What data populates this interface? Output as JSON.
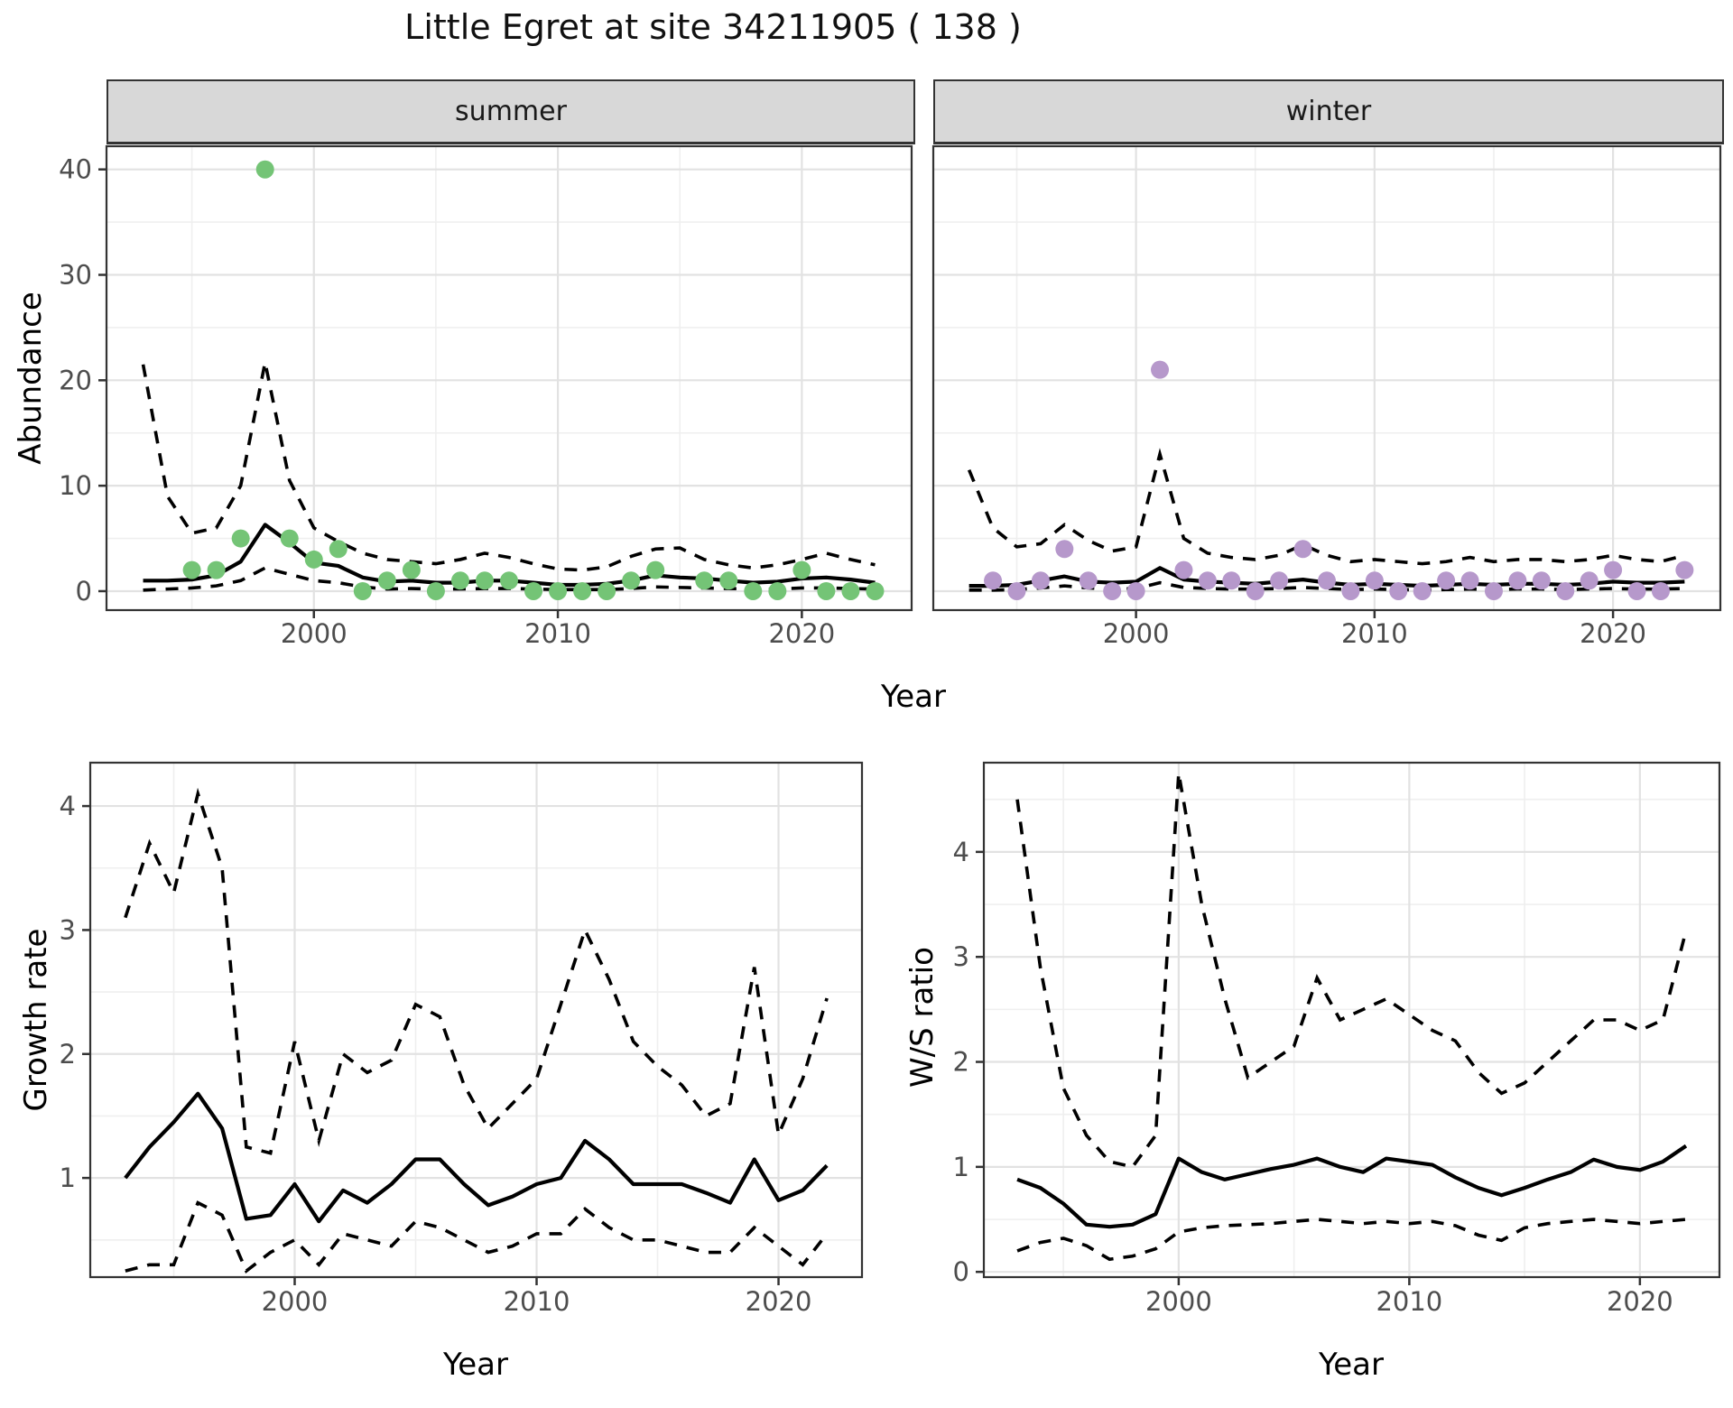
{
  "title": "Little Egret at site 34211905 ( 138 )",
  "labels": {
    "y_top": "Abundance",
    "x": "Year",
    "y_growth": "Growth rate",
    "y_ws": "W/S ratio"
  },
  "colors": {
    "summer_point": "#74C476",
    "winter_point": "#B698CB",
    "line": "#000000",
    "grid_major": "#E2E2E2",
    "grid_minor": "#EFEFEF",
    "panel_border": "#333333",
    "strip_bg": "#D8D8D8",
    "tick_text": "#4D4D4D"
  },
  "chart_data": [
    {
      "id": "abundance-summer",
      "type": "line",
      "facet": "summer",
      "xlabel": "Year",
      "ylabel": "Abundance",
      "legend": "none",
      "grid": "on",
      "years": [
        1993,
        1994,
        1995,
        1996,
        1997,
        1998,
        1999,
        2000,
        2001,
        2002,
        2003,
        2004,
        2005,
        2006,
        2007,
        2008,
        2009,
        2010,
        2011,
        2012,
        2013,
        2014,
        2015,
        2016,
        2017,
        2018,
        2019,
        2020,
        2021,
        2022,
        2023
      ],
      "obs": [
        null,
        null,
        2,
        2,
        5,
        40,
        5,
        3,
        4,
        0,
        1,
        2,
        0,
        1,
        1,
        1,
        0,
        0,
        0,
        0,
        1,
        2,
        null,
        1,
        1,
        0,
        0,
        2,
        0,
        0,
        0
      ],
      "fit": [
        1.0,
        1.0,
        1.1,
        1.5,
        2.8,
        6.3,
        4.6,
        2.7,
        2.4,
        1.3,
        0.9,
        1.0,
        0.8,
        0.8,
        1.0,
        1.0,
        0.8,
        0.6,
        0.6,
        0.7,
        1.0,
        1.5,
        1.3,
        1.2,
        1.0,
        0.8,
        0.9,
        1.2,
        1.3,
        1.1,
        0.8
      ],
      "hi": [
        21.5,
        9.0,
        5.5,
        6.0,
        10.0,
        21.7,
        10.5,
        6.0,
        4.7,
        3.6,
        3.0,
        2.8,
        2.6,
        3.0,
        3.6,
        3.2,
        2.6,
        2.1,
        2.0,
        2.3,
        3.3,
        4.0,
        4.1,
        3.0,
        2.5,
        2.2,
        2.5,
        3.0,
        3.6,
        3.0,
        2.5
      ],
      "lo": [
        0.1,
        0.2,
        0.3,
        0.5,
        1.0,
        2.2,
        1.6,
        1.0,
        0.8,
        0.4,
        0.2,
        0.25,
        0.2,
        0.2,
        0.25,
        0.25,
        0.2,
        0.15,
        0.15,
        0.15,
        0.25,
        0.4,
        0.35,
        0.3,
        0.25,
        0.2,
        0.2,
        0.3,
        0.3,
        0.25,
        0.2
      ],
      "x_ticks": [
        2000,
        2010,
        2020
      ],
      "x_minor": [
        1995,
        2005,
        2015
      ],
      "y_ticks": [
        0,
        10,
        20,
        30,
        40
      ],
      "y_minor": [
        5,
        15,
        25,
        35
      ],
      "xlim": [
        1991.5,
        2024.5
      ],
      "ylim": [
        -1.8,
        42.2
      ],
      "point_color_key": "summer_point"
    },
    {
      "id": "abundance-winter",
      "type": "line",
      "facet": "winter",
      "xlabel": "Year",
      "ylabel": "Abundance",
      "legend": "none",
      "grid": "on",
      "years": [
        1993,
        1994,
        1995,
        1996,
        1997,
        1998,
        1999,
        2000,
        2001,
        2002,
        2003,
        2004,
        2005,
        2006,
        2007,
        2008,
        2009,
        2010,
        2011,
        2012,
        2013,
        2014,
        2015,
        2016,
        2017,
        2018,
        2019,
        2020,
        2021,
        2022,
        2023
      ],
      "obs": [
        null,
        1,
        0,
        1,
        4,
        1,
        0,
        0,
        21,
        2,
        1,
        1,
        0,
        1,
        4,
        1,
        0,
        1,
        0,
        0,
        1,
        1,
        0,
        1,
        1,
        0,
        1,
        2,
        0,
        0,
        2
      ],
      "fit": [
        0.5,
        0.5,
        0.6,
        1.0,
        1.4,
        0.9,
        0.8,
        0.9,
        2.2,
        1.1,
        0.9,
        0.8,
        0.7,
        0.9,
        1.1,
        0.8,
        0.6,
        0.7,
        0.6,
        0.5,
        0.6,
        0.7,
        0.6,
        0.7,
        0.7,
        0.6,
        0.7,
        0.9,
        0.8,
        0.8,
        0.9
      ],
      "hi": [
        11.5,
        6.0,
        4.2,
        4.5,
        6.3,
        4.8,
        3.8,
        4.2,
        13.0,
        5.0,
        3.6,
        3.2,
        3.0,
        3.4,
        4.4,
        3.4,
        2.8,
        3.0,
        2.8,
        2.6,
        2.8,
        3.2,
        2.8,
        3.0,
        3.0,
        2.8,
        3.0,
        3.4,
        3.0,
        2.8,
        3.4
      ],
      "lo": [
        0.1,
        0.1,
        0.15,
        0.3,
        0.5,
        0.3,
        0.2,
        0.25,
        0.8,
        0.35,
        0.25,
        0.2,
        0.2,
        0.25,
        0.35,
        0.25,
        0.15,
        0.2,
        0.15,
        0.1,
        0.15,
        0.2,
        0.15,
        0.2,
        0.2,
        0.15,
        0.2,
        0.25,
        0.2,
        0.2,
        0.25
      ],
      "x_ticks": [
        2000,
        2010,
        2020
      ],
      "x_minor": [
        1995,
        2005,
        2015
      ],
      "y_ticks": [
        0,
        10,
        20,
        30,
        40
      ],
      "y_minor": [
        5,
        15,
        25,
        35
      ],
      "xlim": [
        1991.5,
        2024.5
      ],
      "ylim": [
        -1.8,
        42.2
      ],
      "point_color_key": "winter_point"
    },
    {
      "id": "growth-rate",
      "type": "line",
      "xlabel": "Year",
      "ylabel": "Growth rate",
      "legend": "none",
      "grid": "on",
      "years": [
        1993,
        1994,
        1995,
        1996,
        1997,
        1998,
        1999,
        2000,
        2001,
        2002,
        2003,
        2004,
        2005,
        2006,
        2007,
        2008,
        2009,
        2010,
        2011,
        2012,
        2013,
        2014,
        2015,
        2016,
        2017,
        2018,
        2019,
        2020,
        2021,
        2022
      ],
      "fit": [
        1.0,
        1.25,
        1.45,
        1.68,
        1.4,
        0.67,
        0.7,
        0.95,
        0.65,
        0.9,
        0.8,
        0.95,
        1.15,
        1.15,
        0.95,
        0.78,
        0.85,
        0.95,
        1.0,
        1.3,
        1.15,
        0.95,
        0.95,
        0.95,
        0.88,
        0.8,
        1.15,
        0.82,
        0.9,
        1.1
      ],
      "hi": [
        3.1,
        3.7,
        3.3,
        4.1,
        3.5,
        1.25,
        1.2,
        2.1,
        1.3,
        2.0,
        1.85,
        1.95,
        2.4,
        2.3,
        1.75,
        1.4,
        1.6,
        1.8,
        2.4,
        3.0,
        2.6,
        2.1,
        1.9,
        1.75,
        1.5,
        1.6,
        2.7,
        1.35,
        1.8,
        2.45
      ],
      "lo": [
        0.25,
        0.3,
        0.3,
        0.8,
        0.7,
        0.25,
        0.4,
        0.5,
        0.3,
        0.55,
        0.5,
        0.45,
        0.65,
        0.6,
        0.5,
        0.4,
        0.45,
        0.55,
        0.55,
        0.75,
        0.6,
        0.5,
        0.5,
        0.45,
        0.4,
        0.4,
        0.6,
        0.45,
        0.3,
        0.55
      ],
      "x_ticks": [
        2000,
        2010,
        2020
      ],
      "x_minor": [
        1995,
        2005,
        2015
      ],
      "y_ticks": [
        1,
        2,
        3,
        4
      ],
      "y_minor": [
        0.5,
        1.5,
        2.5,
        3.5
      ],
      "xlim": [
        1991.55,
        2023.45
      ],
      "ylim": [
        0.2,
        4.35
      ]
    },
    {
      "id": "ws-ratio",
      "type": "line",
      "xlabel": "Year",
      "ylabel": "W/S ratio",
      "legend": "none",
      "grid": "on",
      "years": [
        1993,
        1994,
        1995,
        1996,
        1997,
        1998,
        1999,
        2000,
        2001,
        2002,
        2003,
        2004,
        2005,
        2006,
        2007,
        2008,
        2009,
        2010,
        2011,
        2012,
        2013,
        2014,
        2015,
        2016,
        2017,
        2018,
        2019,
        2020,
        2021,
        2022
      ],
      "fit": [
        0.88,
        0.8,
        0.65,
        0.45,
        0.43,
        0.45,
        0.55,
        1.08,
        0.95,
        0.88,
        0.93,
        0.98,
        1.02,
        1.08,
        1.0,
        0.95,
        1.08,
        1.05,
        1.02,
        0.9,
        0.8,
        0.73,
        0.8,
        0.88,
        0.95,
        1.07,
        1.0,
        0.97,
        1.05,
        1.2
      ],
      "hi": [
        4.5,
        2.9,
        1.75,
        1.3,
        1.05,
        1.0,
        1.3,
        4.75,
        3.5,
        2.6,
        1.85,
        2.0,
        2.15,
        2.8,
        2.4,
        2.5,
        2.6,
        2.45,
        2.3,
        2.2,
        1.9,
        1.7,
        1.8,
        2.0,
        2.2,
        2.4,
        2.4,
        2.3,
        2.4,
        3.25
      ],
      "lo": [
        0.2,
        0.28,
        0.32,
        0.25,
        0.12,
        0.15,
        0.22,
        0.38,
        0.42,
        0.44,
        0.45,
        0.46,
        0.48,
        0.5,
        0.48,
        0.46,
        0.48,
        0.46,
        0.48,
        0.44,
        0.35,
        0.3,
        0.42,
        0.46,
        0.48,
        0.5,
        0.48,
        0.46,
        0.48,
        0.5
      ],
      "x_ticks": [
        2000,
        2010,
        2020
      ],
      "x_minor": [
        1995,
        2005,
        2015
      ],
      "y_ticks": [
        0,
        1,
        2,
        3,
        4
      ],
      "y_minor": [
        0.5,
        1.5,
        2.5,
        3.5,
        4.5
      ],
      "xlim": [
        1991.55,
        2023.45
      ],
      "ylim": [
        -0.05,
        4.85
      ]
    }
  ]
}
